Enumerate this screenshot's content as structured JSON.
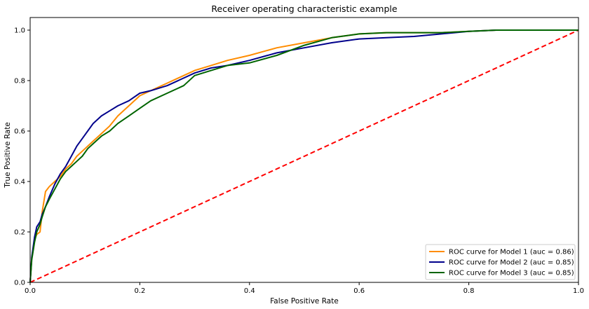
{
  "chart_data": {
    "type": "line",
    "title": "Receiver operating characteristic example",
    "xlabel": "False Positive Rate",
    "ylabel": "True Positive Rate",
    "xlim": [
      0,
      1
    ],
    "ylim": [
      0,
      1.05
    ],
    "xticks": [
      "0.0",
      "0.2",
      "0.4",
      "0.6",
      "0.8",
      "1.0"
    ],
    "yticks": [
      "0.0",
      "0.2",
      "0.4",
      "0.6",
      "0.8",
      "1.0"
    ],
    "grid": false,
    "legend_position": "lower-right",
    "series": [
      {
        "name": "ROC curve for Model 1 (auc = 0.86)",
        "color": "#ff8c00",
        "style": "solid",
        "x": [
          0,
          0.003,
          0.008,
          0.012,
          0.018,
          0.022,
          0.028,
          0.035,
          0.045,
          0.055,
          0.065,
          0.075,
          0.085,
          0.095,
          0.105,
          0.115,
          0.13,
          0.145,
          0.16,
          0.18,
          0.2,
          0.22,
          0.25,
          0.28,
          0.3,
          0.33,
          0.36,
          0.4,
          0.45,
          0.5,
          0.55,
          0.6,
          0.65,
          0.7,
          0.75,
          0.8,
          0.85,
          0.9,
          0.95,
          1.0
        ],
        "y": [
          0,
          0.1,
          0.17,
          0.19,
          0.2,
          0.28,
          0.36,
          0.38,
          0.4,
          0.42,
          0.45,
          0.47,
          0.5,
          0.52,
          0.54,
          0.56,
          0.59,
          0.62,
          0.66,
          0.7,
          0.74,
          0.76,
          0.79,
          0.82,
          0.84,
          0.86,
          0.88,
          0.9,
          0.93,
          0.95,
          0.97,
          0.985,
          0.99,
          0.99,
          0.99,
          0.995,
          1.0,
          1.0,
          1.0,
          1.0
        ]
      },
      {
        "name": "ROC curve for Model 2 (auc = 0.85)",
        "color": "#00008b",
        "style": "solid",
        "x": [
          0,
          0.003,
          0.008,
          0.012,
          0.018,
          0.022,
          0.028,
          0.035,
          0.045,
          0.055,
          0.065,
          0.075,
          0.085,
          0.095,
          0.105,
          0.115,
          0.13,
          0.145,
          0.16,
          0.18,
          0.2,
          0.22,
          0.25,
          0.28,
          0.3,
          0.33,
          0.36,
          0.4,
          0.45,
          0.5,
          0.55,
          0.6,
          0.65,
          0.7,
          0.75,
          0.8,
          0.85,
          0.9,
          0.95,
          1.0
        ],
        "y": [
          0,
          0.1,
          0.18,
          0.22,
          0.24,
          0.27,
          0.3,
          0.34,
          0.39,
          0.43,
          0.46,
          0.5,
          0.54,
          0.57,
          0.6,
          0.63,
          0.66,
          0.68,
          0.7,
          0.72,
          0.75,
          0.76,
          0.78,
          0.81,
          0.83,
          0.85,
          0.86,
          0.88,
          0.91,
          0.93,
          0.95,
          0.965,
          0.97,
          0.975,
          0.985,
          0.995,
          1.0,
          1.0,
          1.0,
          1.0
        ]
      },
      {
        "name": "ROC curve for Model 3 (auc = 0.85)",
        "color": "#006400",
        "style": "solid",
        "x": [
          0,
          0.003,
          0.008,
          0.012,
          0.018,
          0.022,
          0.028,
          0.035,
          0.045,
          0.055,
          0.065,
          0.075,
          0.085,
          0.095,
          0.105,
          0.115,
          0.13,
          0.145,
          0.16,
          0.18,
          0.2,
          0.22,
          0.25,
          0.28,
          0.3,
          0.33,
          0.36,
          0.4,
          0.45,
          0.5,
          0.55,
          0.6,
          0.65,
          0.7,
          0.75,
          0.8,
          0.85,
          0.9,
          0.95,
          1.0
        ],
        "y": [
          0,
          0.09,
          0.16,
          0.2,
          0.23,
          0.26,
          0.3,
          0.33,
          0.37,
          0.41,
          0.44,
          0.46,
          0.48,
          0.5,
          0.53,
          0.55,
          0.58,
          0.6,
          0.63,
          0.66,
          0.69,
          0.72,
          0.75,
          0.78,
          0.82,
          0.84,
          0.86,
          0.87,
          0.9,
          0.94,
          0.97,
          0.985,
          0.99,
          0.99,
          0.99,
          0.995,
          1.0,
          1.0,
          1.0,
          1.0
        ]
      },
      {
        "name": "",
        "color": "#ff0000",
        "style": "dashed",
        "x": [
          0,
          1
        ],
        "y": [
          0,
          1
        ]
      }
    ]
  }
}
